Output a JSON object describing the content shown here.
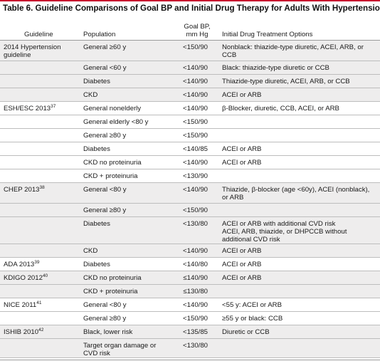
{
  "title": "Table 6. Guideline Comparisons of Goal BP and Initial Drug Therapy for Adults With Hypertension",
  "headers": {
    "guideline": "Guideline",
    "population": "Population",
    "goal_bp_line1": "Goal BP,",
    "goal_bp_line2": "mm Hg",
    "drug": "Initial Drug Treatment Options"
  },
  "rows": [
    {
      "guideline": "2014 Hypertension guideline",
      "ref": "",
      "population": "General ≥60 y",
      "bp": "<150/90",
      "drug": "Nonblack: thiazide-type diuretic, ACEI, ARB, or CCB"
    },
    {
      "guideline": "",
      "ref": "",
      "population": "General <60 y",
      "bp": "<140/90",
      "drug": "Black: thiazide-type diuretic or CCB"
    },
    {
      "guideline": "",
      "ref": "",
      "population": "Diabetes",
      "bp": "<140/90",
      "drug": "Thiazide-type diuretic, ACEI, ARB, or CCB"
    },
    {
      "guideline": "",
      "ref": "",
      "population": "CKD",
      "bp": "<140/90",
      "drug": "ACEI or ARB"
    },
    {
      "guideline": "ESH/ESC 2013",
      "ref": "37",
      "population": "General nonelderly",
      "bp": "<140/90",
      "drug": "β-Blocker, diuretic, CCB, ACEI, or ARB"
    },
    {
      "guideline": "",
      "ref": "",
      "population": "General elderly <80 y",
      "bp": "<150/90",
      "drug": ""
    },
    {
      "guideline": "",
      "ref": "",
      "population": "General ≥80 y",
      "bp": "<150/90",
      "drug": ""
    },
    {
      "guideline": "",
      "ref": "",
      "population": "Diabetes",
      "bp": "<140/85",
      "drug": "ACEI or ARB"
    },
    {
      "guideline": "",
      "ref": "",
      "population": "CKD no proteinuria",
      "bp": "<140/90",
      "drug": "ACEI or ARB"
    },
    {
      "guideline": "",
      "ref": "",
      "population": "CKD + proteinuria",
      "bp": "<130/90",
      "drug": ""
    },
    {
      "guideline": "CHEP 2013",
      "ref": "38",
      "population": "General <80 y",
      "bp": "<140/90",
      "drug": "Thiazide, β-blocker (age <60y), ACEI (nonblack), or ARB"
    },
    {
      "guideline": "",
      "ref": "",
      "population": "General ≥80 y",
      "bp": "<150/90",
      "drug": ""
    },
    {
      "guideline": "",
      "ref": "",
      "population": "Diabetes",
      "bp": "<130/80",
      "drug": "ACEI or ARB with additional CVD risk",
      "drug2": "ACEI, ARB, thiazide, or DHPCCB without additional CVD risk"
    },
    {
      "guideline": "",
      "ref": "",
      "population": "CKD",
      "bp": "<140/90",
      "drug": "ACEI or ARB"
    },
    {
      "guideline": "ADA 2013",
      "ref": "39",
      "population": "Diabetes",
      "bp": "<140/80",
      "drug": "ACEI or ARB"
    },
    {
      "guideline": "KDIGO 2012",
      "ref": "40",
      "population": "CKD no proteinuria",
      "bp": "≤140/90",
      "drug": "ACEI or ARB"
    },
    {
      "guideline": "",
      "ref": "",
      "population": "CKD + proteinuria",
      "bp": "≤130/80",
      "drug": ""
    },
    {
      "guideline": "NICE 2011",
      "ref": "41",
      "population": "General <80 y",
      "bp": "<140/90",
      "drug": "<55 y: ACEI or ARB"
    },
    {
      "guideline": "",
      "ref": "",
      "population": "General ≥80 y",
      "bp": "<150/90",
      "drug": "≥55 y or black: CCB"
    },
    {
      "guideline": "ISHIB 2010",
      "ref": "42",
      "population": "Black, lower risk",
      "bp": "<135/85",
      "drug": "Diuretic or CCB"
    },
    {
      "guideline": "",
      "ref": "",
      "population": "Target organ damage or CVD risk",
      "bp": "<130/80",
      "drug": ""
    }
  ]
}
